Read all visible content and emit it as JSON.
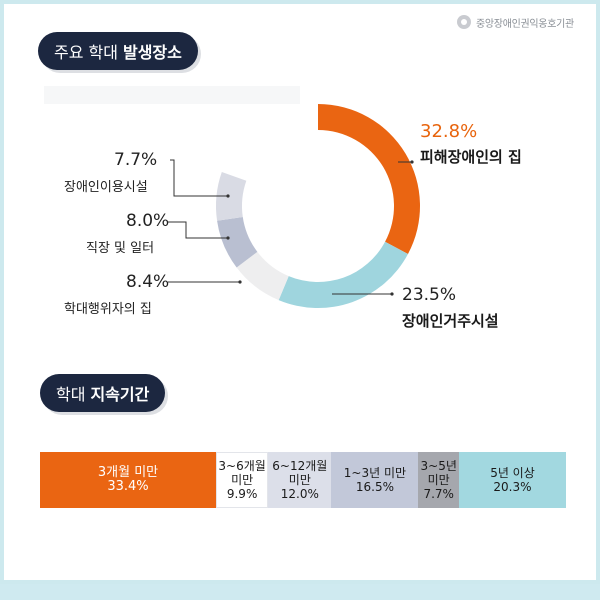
{
  "logo": {
    "text": "중앙장애인권익옹호기관"
  },
  "section1": {
    "title_prefix": "주요 학대",
    "title_bold": "발생장소"
  },
  "section2": {
    "title_prefix": "학대",
    "title_bold": "지속기간"
  },
  "colors": {
    "orange": "#ea6512",
    "teal": "#9fd5de",
    "light_gray": "#eeeeef",
    "slate": "#b9bfd1",
    "pale": "#d9dbe4",
    "navy": "#1c2740"
  },
  "chart_data": [
    {
      "type": "pie",
      "title": "주요 학대 발생장소",
      "slices": [
        {
          "label": "피해장애인의 집",
          "value": 32.8,
          "value_text": "32.8%",
          "color": "#ea6512"
        },
        {
          "label": "장애인거주시설",
          "value": 23.5,
          "value_text": "23.5%",
          "color": "#9fd5de"
        },
        {
          "label": "학대행위자의 집",
          "value": 8.4,
          "value_text": "8.4%",
          "color": "#eeeeef"
        },
        {
          "label": "직장 및 일터",
          "value": 8.0,
          "value_text": "8.0%",
          "color": "#b9bfd1"
        },
        {
          "label": "장애인이용시설",
          "value": 7.7,
          "value_text": "7.7%",
          "color": "#d9dbe4"
        }
      ]
    },
    {
      "type": "bar",
      "title": "학대 지속기간",
      "stacked": true,
      "categories": [
        "3개월 미만",
        "3~6개월 미만",
        "6~12개월 미만",
        "1~3년 미만",
        "3~5년 미만",
        "5년 이상"
      ],
      "values": [
        33.4,
        9.9,
        12.0,
        16.5,
        7.7,
        20.3
      ],
      "value_texts": [
        "33.4%",
        "9.9%",
        "12.0%",
        "16.5%",
        "7.7%",
        "20.3%"
      ],
      "colors": [
        "#ea6512",
        "#ffffff",
        "#dcdfe9",
        "#c2c8d9",
        "#a5a7ad",
        "#a2d8e0"
      ],
      "text_colors": [
        "#ffffff",
        "#1a1a1a",
        "#1a1a1a",
        "#1a1a1a",
        "#1a1a1a",
        "#1a1a1a"
      ]
    }
  ]
}
